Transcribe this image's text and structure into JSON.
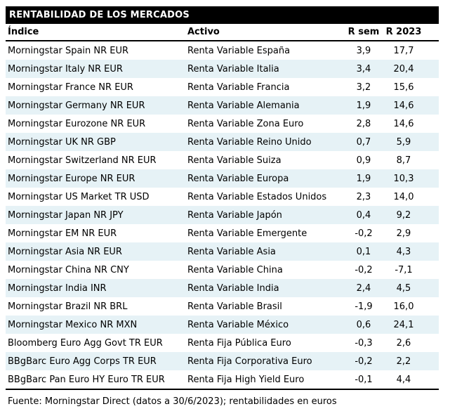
{
  "title": "RENTABILIDAD DE LOS MERCADOS",
  "table": {
    "columns": {
      "indice": "Índice",
      "activo": "Activo",
      "r_sem": "R sem",
      "r_2023": "R 2023"
    },
    "rows": [
      {
        "indice": "Morningstar Spain NR EUR",
        "activo": "Renta Variable España",
        "r_sem": "3,9",
        "r_2023": "17,7"
      },
      {
        "indice": "Morningstar Italy NR EUR",
        "activo": "Renta Variable Italia",
        "r_sem": "3,4",
        "r_2023": "20,4"
      },
      {
        "indice": "Morningstar France NR EUR",
        "activo": "Renta Variable Francia",
        "r_sem": "3,2",
        "r_2023": "15,6"
      },
      {
        "indice": "Morningstar Germany NR EUR",
        "activo": "Renta Variable Alemania",
        "r_sem": "1,9",
        "r_2023": "14,6"
      },
      {
        "indice": "Morningstar Eurozone NR EUR",
        "activo": "Renta Variable Zona Euro",
        "r_sem": "2,8",
        "r_2023": "14,6"
      },
      {
        "indice": "Morningstar UK NR GBP",
        "activo": "Renta Variable Reino Unido",
        "r_sem": "0,7",
        "r_2023": "5,9"
      },
      {
        "indice": "Morningstar Switzerland NR EUR",
        "activo": "Renta Variable Suiza",
        "r_sem": "0,9",
        "r_2023": "8,7"
      },
      {
        "indice": "Morningstar Europe NR EUR",
        "activo": "Renta Variable Europa",
        "r_sem": "1,9",
        "r_2023": "10,3"
      },
      {
        "indice": "Morningstar US Market TR USD",
        "activo": "Renta Variable Estados Unidos",
        "r_sem": "2,3",
        "r_2023": "14,0"
      },
      {
        "indice": "Morningstar Japan NR JPY",
        "activo": "Renta Variable Japón",
        "r_sem": "0,4",
        "r_2023": "9,2"
      },
      {
        "indice": "Morningstar EM NR EUR",
        "activo": "Renta Variable Emergente",
        "r_sem": "-0,2",
        "r_2023": "2,9"
      },
      {
        "indice": "Morningstar Asia NR EUR",
        "activo": "Renta Variable Asia",
        "r_sem": "0,1",
        "r_2023": "4,3"
      },
      {
        "indice": "Morningstar China NR CNY",
        "activo": "Renta Variable China",
        "r_sem": "-0,2",
        "r_2023": "-7,1"
      },
      {
        "indice": "Morningstar India INR",
        "activo": "Renta Variable India",
        "r_sem": "2,4",
        "r_2023": "4,5"
      },
      {
        "indice": "Morningstar Brazil NR BRL",
        "activo": "Renta Variable Brasil",
        "r_sem": "-1,9",
        "r_2023": "16,0"
      },
      {
        "indice": "Morningstar Mexico NR MXN",
        "activo": "Renta Variable México",
        "r_sem": "0,6",
        "r_2023": "24,1"
      },
      {
        "indice": "Bloomberg Euro Agg Govt TR EUR",
        "activo": "Renta Fija Pública Euro",
        "r_sem": "-0,3",
        "r_2023": "2,6"
      },
      {
        "indice": "BBgBarc Euro Agg Corps TR EUR",
        "activo": "Renta Fija Corporativa Euro",
        "r_sem": "-0,2",
        "r_2023": "2,2"
      },
      {
        "indice": "BBgBarc Pan Euro HY Euro TR EUR",
        "activo": "Renta Fija High Yield Euro",
        "r_sem": "-0,1",
        "r_2023": "4,4"
      }
    ]
  },
  "footer": "Fuente: Morningstar Direct (datos a 30/6/2023); rentabilidades en euros",
  "colors": {
    "title_bg": "#000000",
    "title_text": "#ffffff",
    "stripe": "#e6f2f6",
    "text": "#000000"
  }
}
